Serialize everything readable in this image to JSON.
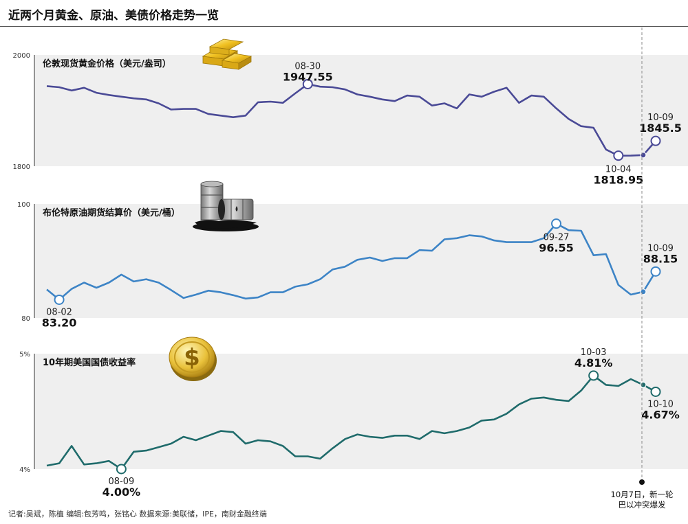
{
  "page": {
    "title": "近两个月黄金、原油、美债价格走势一览",
    "footer": "记者:吴斌，陈植   编辑:包芳鸣，张铭心   数据来源:美联储，IPE，南财金融终端"
  },
  "event": {
    "line1": "10月7日，新一轮",
    "line2": "巴以冲突爆发"
  },
  "chart_data": [
    {
      "type": "line",
      "title": "伦敦现货黄金价格（美元/盎司）",
      "color": "#4a4a96",
      "ylim": [
        1800,
        2000
      ],
      "yticks": [
        "2000",
        "1800"
      ],
      "band_color": "#efefef",
      "x": [
        "08-01",
        "08-02",
        "08-03",
        "08-04",
        "08-07",
        "08-08",
        "08-09",
        "08-10",
        "08-11",
        "08-14",
        "08-15",
        "08-16",
        "08-17",
        "08-18",
        "08-21",
        "08-22",
        "08-23",
        "08-24",
        "08-25",
        "08-28",
        "08-29",
        "08-30",
        "08-31",
        "09-01",
        "09-04",
        "09-05",
        "09-06",
        "09-07",
        "09-08",
        "09-11",
        "09-12",
        "09-13",
        "09-14",
        "09-15",
        "09-18",
        "09-19",
        "09-20",
        "09-21",
        "09-22",
        "09-25",
        "09-26",
        "09-27",
        "09-28",
        "09-29",
        "10-02",
        "10-03",
        "10-04",
        "10-05",
        "10-06",
        "10-09"
      ],
      "values": [
        1944,
        1942,
        1936,
        1941,
        1932,
        1928,
        1925,
        1922,
        1920,
        1913,
        1902,
        1903,
        1903,
        1894,
        1891,
        1888,
        1891,
        1915,
        1916,
        1914,
        1931,
        1947.55,
        1943,
        1942,
        1938,
        1929,
        1925,
        1920,
        1917,
        1927,
        1925,
        1909,
        1913,
        1904,
        1929,
        1925,
        1934,
        1941,
        1914,
        1927,
        1925,
        1904,
        1885,
        1872,
        1869,
        1830,
        1818.95,
        1819,
        1820,
        1845.5
      ],
      "annotations": [
        {
          "date": "08-30",
          "value": "1947.55"
        },
        {
          "date": "10-04",
          "value": "1818.95"
        },
        {
          "date": "10-09",
          "value": "1845.5"
        }
      ]
    },
    {
      "type": "line",
      "title": "布伦特原油期货结算价（美元/桶）",
      "color": "#3d84c6",
      "ylim": [
        80,
        100
      ],
      "yticks": [
        "100",
        "80"
      ],
      "band_color": "#efefef",
      "x": [
        "08-01",
        "08-02",
        "08-03",
        "08-04",
        "08-07",
        "08-08",
        "08-09",
        "08-10",
        "08-11",
        "08-14",
        "08-15",
        "08-16",
        "08-17",
        "08-18",
        "08-21",
        "08-22",
        "08-23",
        "08-24",
        "08-25",
        "08-28",
        "08-29",
        "08-30",
        "08-31",
        "09-01",
        "09-04",
        "09-05",
        "09-06",
        "09-07",
        "09-08",
        "09-11",
        "09-12",
        "09-13",
        "09-14",
        "09-15",
        "09-18",
        "09-19",
        "09-20",
        "09-21",
        "09-22",
        "09-25",
        "09-26",
        "09-27",
        "09-28",
        "09-29",
        "10-02",
        "10-03",
        "10-04",
        "10-05",
        "10-06",
        "10-09"
      ],
      "values": [
        85.0,
        83.2,
        85.1,
        86.2,
        85.3,
        86.2,
        87.6,
        86.4,
        86.8,
        86.2,
        84.9,
        83.5,
        84.1,
        84.8,
        84.5,
        84.0,
        83.4,
        83.6,
        84.5,
        84.5,
        85.5,
        85.9,
        86.8,
        88.5,
        89.0,
        90.2,
        90.6,
        90.0,
        90.5,
        90.5,
        91.9,
        91.8,
        93.8,
        94.0,
        94.5,
        94.3,
        93.6,
        93.3,
        93.3,
        93.3,
        94.0,
        96.55,
        95.4,
        95.3,
        91.0,
        91.2,
        85.8,
        84.1,
        84.6,
        88.15
      ],
      "annotations": [
        {
          "date": "08-02",
          "value": "83.20"
        },
        {
          "date": "09-27",
          "value": "96.55"
        },
        {
          "date": "10-09",
          "value": "88.15"
        }
      ]
    },
    {
      "type": "line",
      "title": "10年期美国国债收益率",
      "color": "#1f6b6b",
      "ylim": [
        4,
        5
      ],
      "yticks": [
        "5%",
        "4%"
      ],
      "band_color": "#efefef",
      "x": [
        "08-01",
        "08-02",
        "08-03",
        "08-04",
        "08-07",
        "08-08",
        "08-09",
        "08-10",
        "08-11",
        "08-14",
        "08-15",
        "08-16",
        "08-17",
        "08-18",
        "08-21",
        "08-22",
        "08-23",
        "08-24",
        "08-25",
        "08-28",
        "08-29",
        "08-30",
        "08-31",
        "09-01",
        "09-05",
        "09-06",
        "09-07",
        "09-08",
        "09-11",
        "09-12",
        "09-13",
        "09-14",
        "09-15",
        "09-18",
        "09-19",
        "09-20",
        "09-21",
        "09-22",
        "09-25",
        "09-26",
        "09-27",
        "09-28",
        "09-29",
        "10-02",
        "10-03",
        "10-04",
        "10-05",
        "10-06",
        "10-09",
        "10-10"
      ],
      "values": [
        4.03,
        4.05,
        4.2,
        4.04,
        4.05,
        4.07,
        4.0,
        4.15,
        4.16,
        4.19,
        4.22,
        4.28,
        4.25,
        4.29,
        4.33,
        4.32,
        4.22,
        4.25,
        4.24,
        4.2,
        4.11,
        4.11,
        4.09,
        4.18,
        4.26,
        4.3,
        4.28,
        4.27,
        4.29,
        4.29,
        4.26,
        4.33,
        4.31,
        4.33,
        4.36,
        4.42,
        4.43,
        4.48,
        4.56,
        4.61,
        4.62,
        4.6,
        4.59,
        4.68,
        4.81,
        4.73,
        4.72,
        4.78,
        4.73,
        4.67
      ],
      "annotations": [
        {
          "date": "08-09",
          "value": "4.00%"
        },
        {
          "date": "10-03",
          "value": "4.81%"
        },
        {
          "date": "10-10",
          "value": "4.67%"
        }
      ]
    }
  ]
}
